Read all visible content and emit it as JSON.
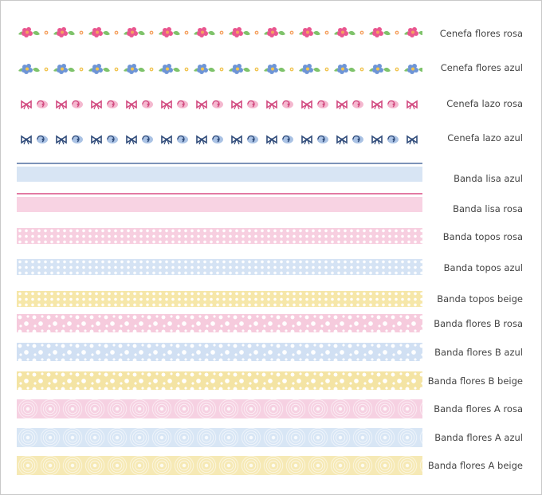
{
  "items": [
    {
      "label": "Cenefa flores rosa",
      "style": "flowers",
      "colors": {
        "petal": "#e9578f",
        "accent": "#f4a261",
        "leaf": "#7fc36b"
      }
    },
    {
      "label": "Cenefa flores azul",
      "style": "flowers",
      "colors": {
        "petal": "#6e95d6",
        "accent": "#f1c450",
        "leaf": "#7fc36b"
      }
    },
    {
      "label": "Cenefa lazo rosa",
      "style": "bows",
      "colors": {
        "bow": "#d24a80",
        "fill": "#f4b8cf"
      }
    },
    {
      "label": "Cenefa lazo azul",
      "style": "bows",
      "colors": {
        "bow": "#2f4b7a",
        "fill": "#aac2e4"
      }
    },
    {
      "label": "Banda lisa azul",
      "style": "solid",
      "colors": {
        "band": "#d8e5f4",
        "line": "#7c93b8"
      }
    },
    {
      "label": "Banda lisa rosa",
      "style": "solid",
      "colors": {
        "band": "#f8d3e3",
        "line": "#e37aa3"
      }
    },
    {
      "label": "Banda topos rosa",
      "style": "dots",
      "colors": {
        "band": "#f7cfe0"
      }
    },
    {
      "label": "Banda topos azul",
      "style": "dots",
      "colors": {
        "band": "#d5e3f4"
      }
    },
    {
      "label": "Banda topos beige",
      "style": "dots",
      "colors": {
        "band": "#f6e7a9"
      }
    },
    {
      "label": "Banda flores B rosa",
      "style": "small-flowers",
      "colors": {
        "band": "#f6cbdd"
      }
    },
    {
      "label": "Banda flores B azul",
      "style": "small-flowers",
      "colors": {
        "band": "#d1e0f3"
      }
    },
    {
      "label": "Banda flores B beige",
      "style": "small-flowers",
      "colors": {
        "band": "#f4e4a4"
      }
    },
    {
      "label": "Banda flores A rosa",
      "style": "lace",
      "colors": {
        "band": "#f6d1e2"
      }
    },
    {
      "label": "Banda flores A azul",
      "style": "lace",
      "colors": {
        "band": "#d8e6f5"
      }
    },
    {
      "label": "Banda flores A beige",
      "style": "lace",
      "colors": {
        "band": "#f6e9b5"
      }
    }
  ]
}
